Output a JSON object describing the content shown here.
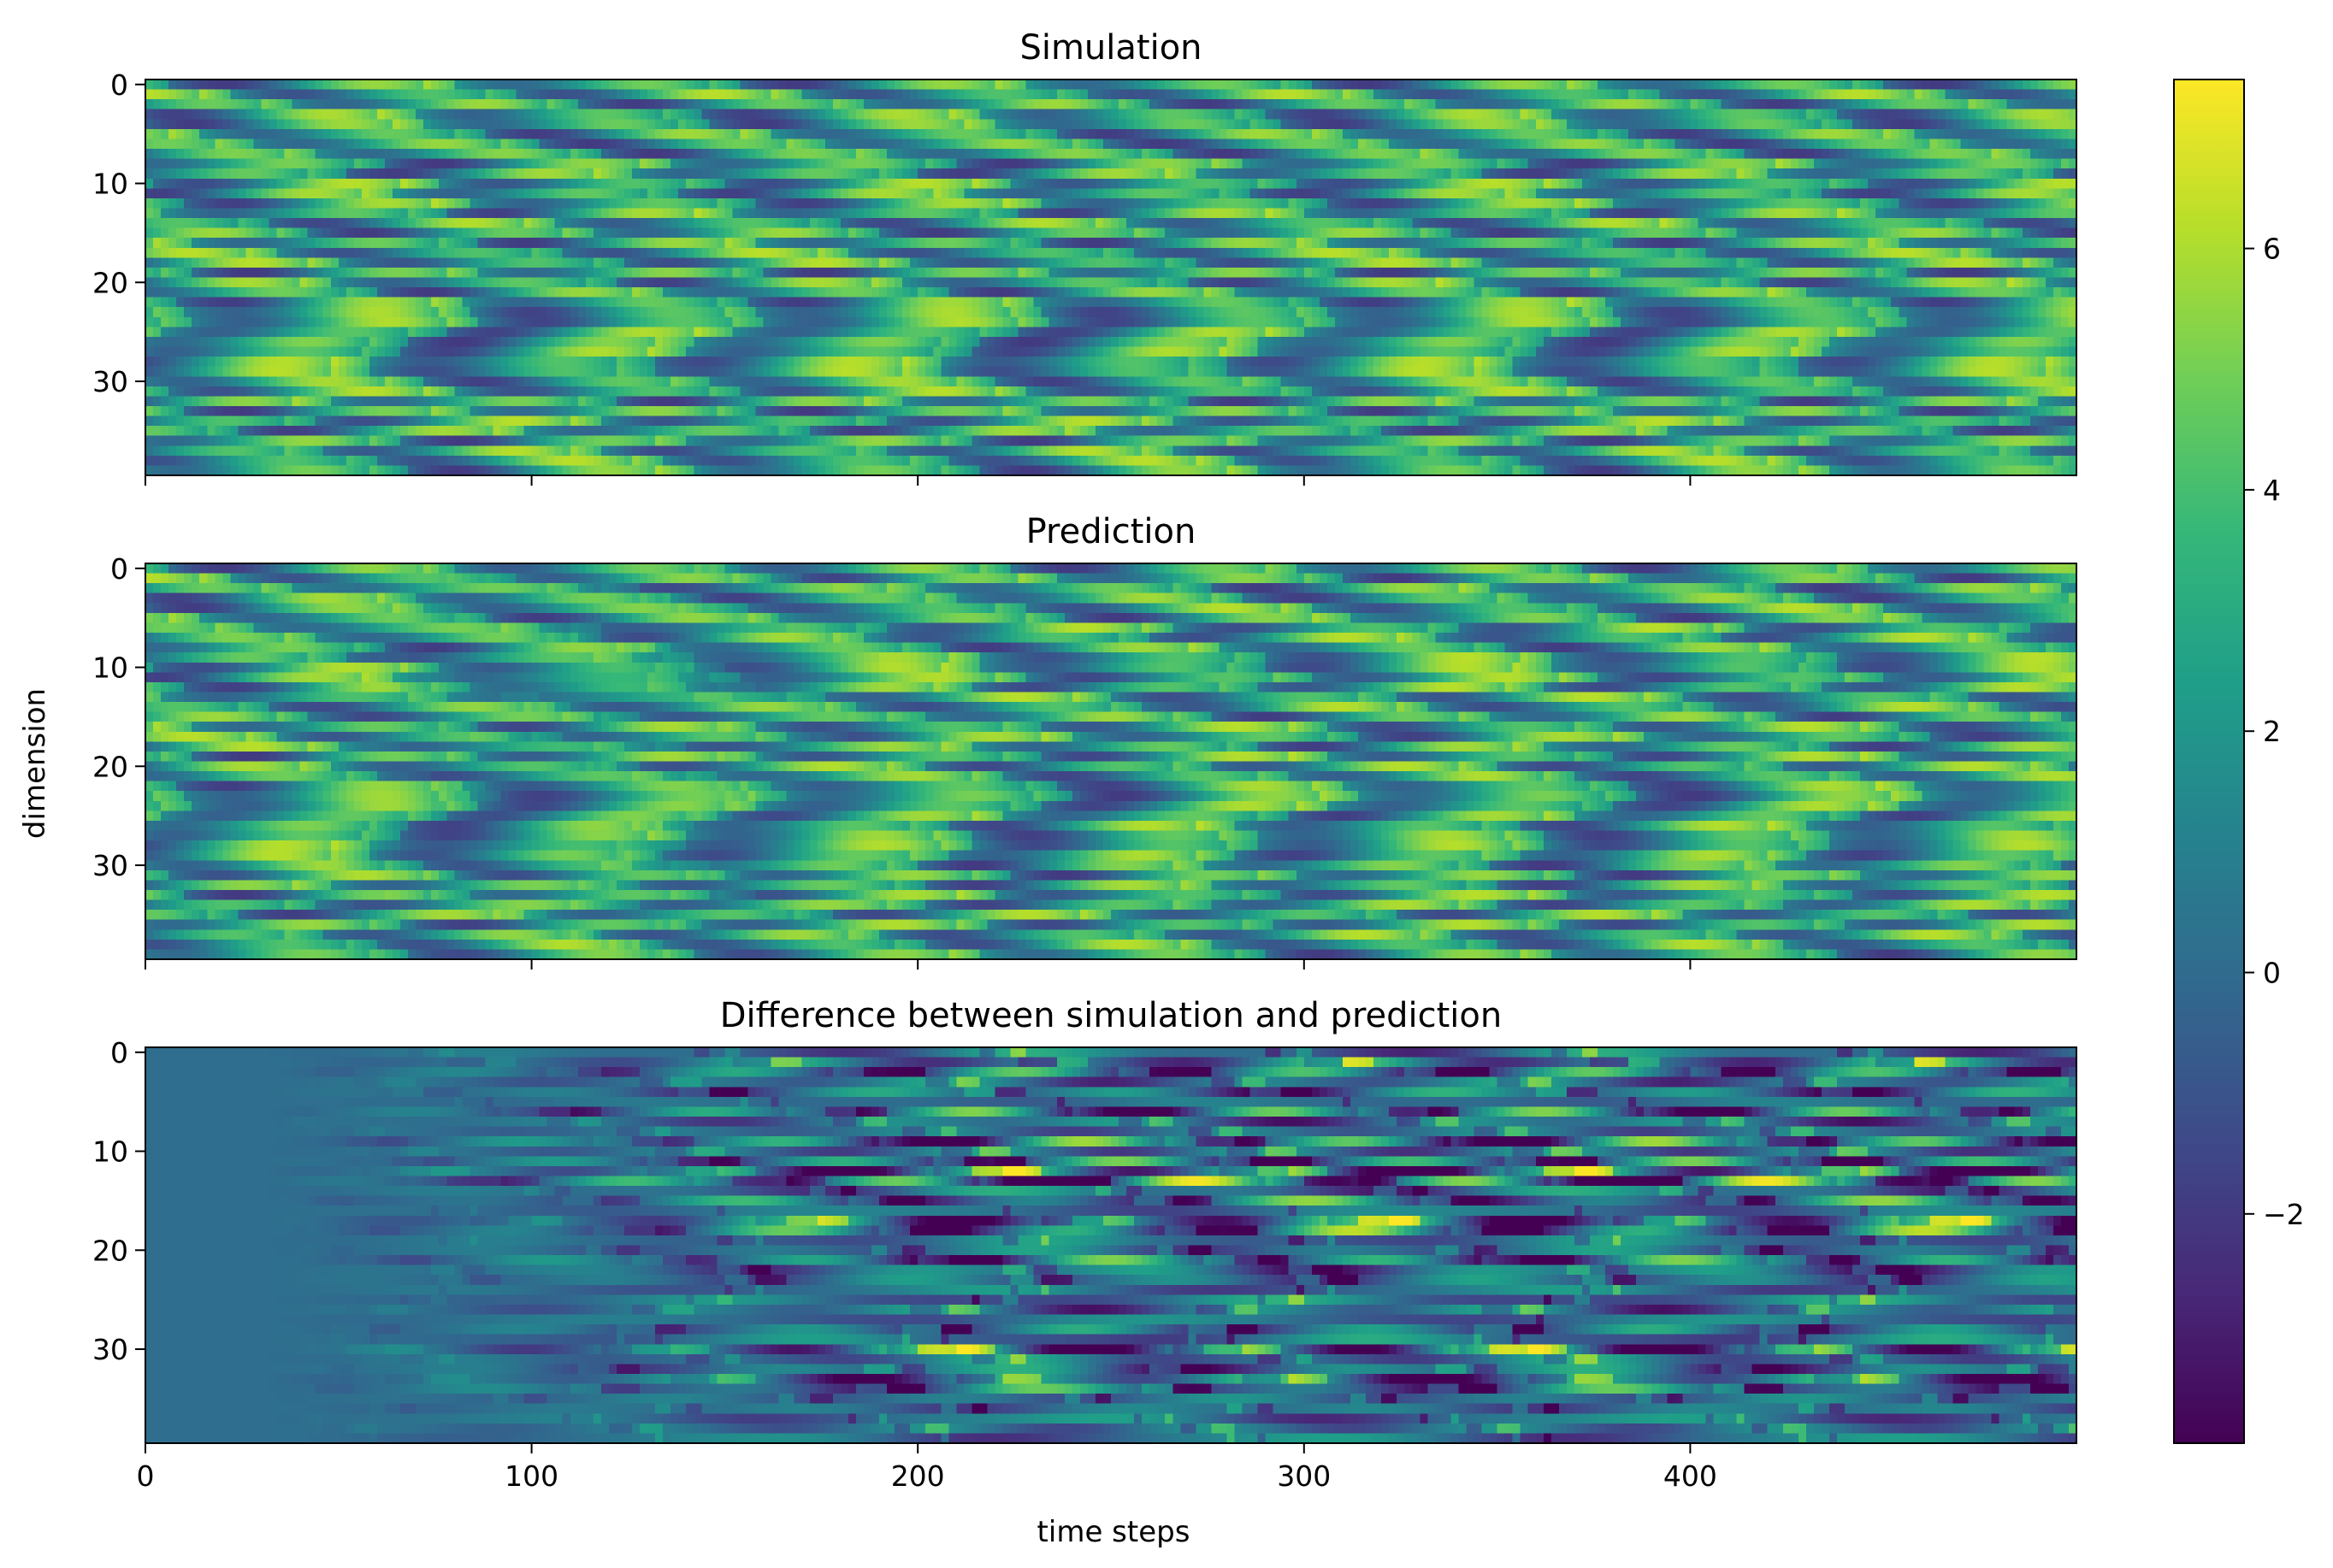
{
  "chart_data": [
    {
      "type": "heatmap",
      "title": "Simulation",
      "xlim": [
        0,
        500
      ],
      "ylim": [
        0,
        40
      ],
      "y_inverted": true,
      "yticks": [
        0,
        10,
        20,
        30
      ],
      "xticks": [
        0,
        100,
        200,
        300,
        400
      ],
      "xtick_labels_visible": false,
      "pattern": "diagonal travelling waves (Lorenz-96 style), yellow streaks drifting toward higher dimension with time",
      "value_range": [
        -3.9,
        7.4
      ]
    },
    {
      "type": "heatmap",
      "title": "Prediction",
      "xlim": [
        0,
        500
      ],
      "ylim": [
        0,
        40
      ],
      "y_inverted": true,
      "yticks": [
        0,
        10,
        20,
        30
      ],
      "xticks": [
        0,
        100,
        200,
        300,
        400
      ],
      "xtick_labels_visible": false,
      "pattern": "diagonal travelling waves; matches simulation closely at early time steps",
      "value_range": [
        -3.9,
        7.4
      ]
    },
    {
      "type": "heatmap",
      "title": "Difference between simulation and prediction",
      "xlabel": "time steps",
      "xlim": [
        0,
        500
      ],
      "ylim": [
        0,
        40
      ],
      "y_inverted": true,
      "yticks": [
        0,
        10,
        20,
        30
      ],
      "xticks": [
        0,
        100,
        200,
        300,
        400
      ],
      "xtick_labels_visible": true,
      "pattern": "near zero for first ~50 steps, amplitude grows with time to full range",
      "value_range": [
        -3.9,
        7.4
      ]
    }
  ],
  "shared": {
    "ylabel": "dimension",
    "colormap": "viridis",
    "colorbar": {
      "min": -3.9,
      "max": 7.4,
      "ticks": [
        -2,
        0,
        2,
        4,
        6
      ],
      "tick_labels": [
        "−2",
        "0",
        "2",
        "4",
        "6"
      ]
    }
  }
}
